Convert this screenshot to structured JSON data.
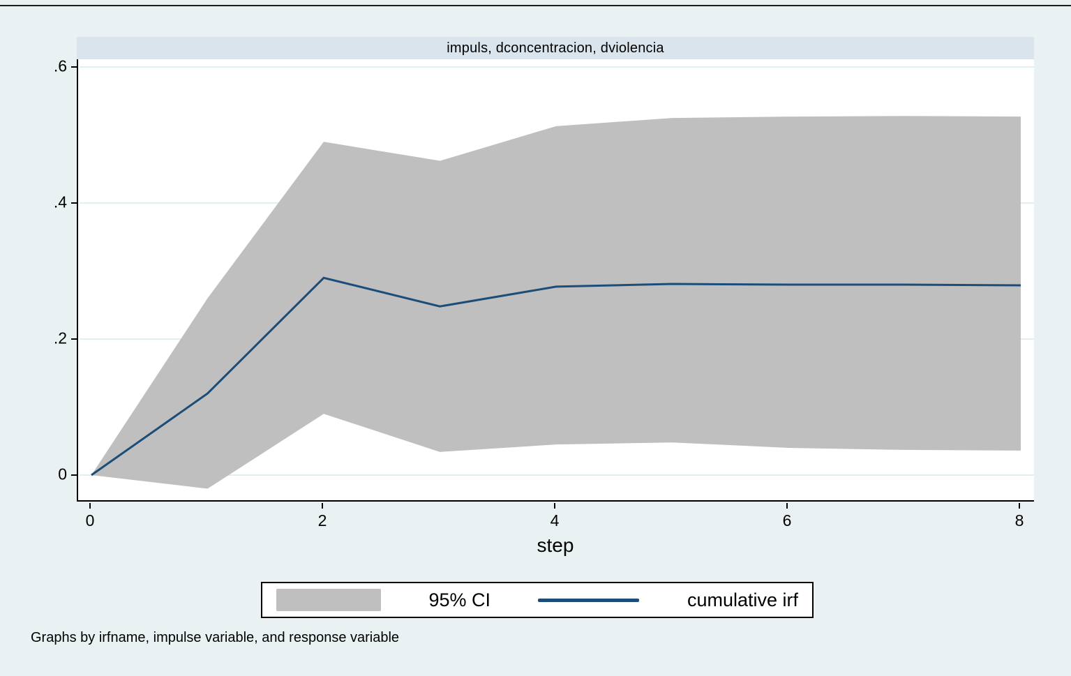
{
  "figure": {
    "title": "impuls, dconcentracion, dviolencia",
    "xlabel": "step",
    "caption": "Graphs by irfname, impulse variable, and response variable",
    "legend": [
      {
        "label": "95% CI",
        "swatch": "area"
      },
      {
        "label": "cumulative irf",
        "swatch": "line"
      }
    ]
  },
  "chart_data": {
    "type": "area",
    "title": "impuls, dconcentracion, dviolencia",
    "xlabel": "step",
    "ylabel": "",
    "x": [
      0,
      1,
      2,
      3,
      4,
      5,
      6,
      7,
      8
    ],
    "series": [
      {
        "name": "95% CI upper",
        "values": [
          0,
          0.26,
          0.49,
          0.462,
          0.513,
          0.525,
          0.527,
          0.528,
          0.527
        ]
      },
      {
        "name": "95% CI lower",
        "values": [
          0,
          -0.02,
          0.09,
          0.034,
          0.045,
          0.048,
          0.04,
          0.037,
          0.036
        ]
      },
      {
        "name": "cumulative irf",
        "values": [
          0,
          0.12,
          0.29,
          0.248,
          0.277,
          0.281,
          0.28,
          0.28,
          0.279
        ]
      }
    ],
    "x_ticks": [
      {
        "label": "0",
        "value": 0
      },
      {
        "label": "2",
        "value": 2
      },
      {
        "label": "4",
        "value": 4
      },
      {
        "label": "6",
        "value": 6
      },
      {
        "label": "8",
        "value": 8
      }
    ],
    "y_ticks": [
      {
        "label": ".6",
        "value": 0.6
      },
      {
        "label": ".4",
        "value": 0.4
      },
      {
        "label": ".2",
        "value": 0.2
      },
      {
        "label": "0",
        "value": 0
      }
    ],
    "xlim": [
      0,
      8
    ],
    "ylim": [
      -0.041,
      0.611
    ],
    "grid": true,
    "legend_position": "bottom",
    "colors": {
      "page_bg": "#e9f1f3",
      "band_bg": "#d9e4ec",
      "plot_bg": "#ffffff",
      "grid": "#e2eef0",
      "ci_area": "#bfbfbf",
      "irf_line": "#1c4d78",
      "axis": "#000000"
    }
  }
}
